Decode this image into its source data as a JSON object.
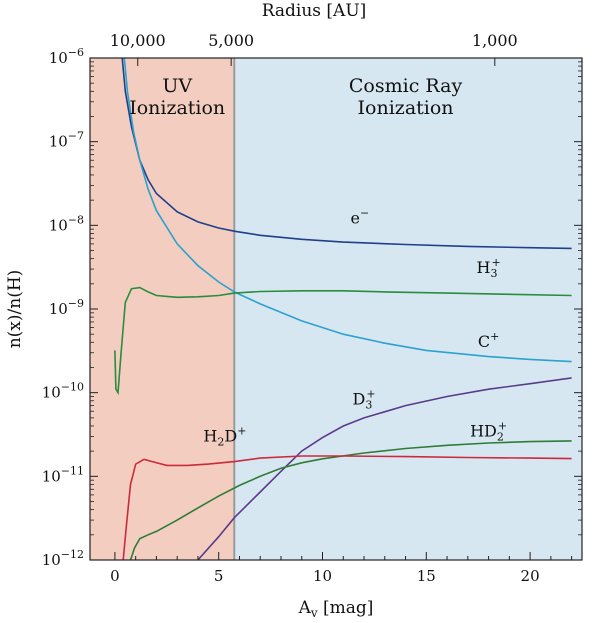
{
  "chart_data": {
    "type": "line",
    "xlabel": "A",
    "xlabel_sub": "v",
    "xlabel_unit": " [mag]",
    "ylabel": "n(x)/n(H)",
    "top_axis_label": "Radius [AU]",
    "xlim": [
      -1.2,
      22.5
    ],
    "ylim": [
      1e-12,
      1e-06
    ],
    "y_scale": "log",
    "grid": false,
    "x_ticks": [
      0,
      5,
      10,
      15,
      20
    ],
    "x_tick_labels": [
      "0",
      "5",
      "10",
      "15",
      "20"
    ],
    "y_ticks": [
      1e-12,
      1e-11,
      1e-10,
      1e-09,
      1e-08,
      1e-07,
      1e-06
    ],
    "y_tick_labels": [
      {
        "base": "10",
        "exp": "−12"
      },
      {
        "base": "10",
        "exp": "−11"
      },
      {
        "base": "10",
        "exp": "−10"
      },
      {
        "base": "10",
        "exp": "−9"
      },
      {
        "base": "10",
        "exp": "−8"
      },
      {
        "base": "10",
        "exp": "−7"
      },
      {
        "base": "10",
        "exp": "−6"
      }
    ],
    "top_ticks": [
      {
        "label": "10,000",
        "av": 1.1
      },
      {
        "label": "5,000",
        "av": 5.6
      },
      {
        "label": "1,000",
        "av": 18.3
      }
    ],
    "regions": [
      {
        "title_lines": [
          "UV",
          "Ionization"
        ],
        "x_from": -1.2,
        "x_to": 5.75,
        "color": "#f3cdbf",
        "title_x": 3.0
      },
      {
        "title_lines": [
          "Cosmic Ray",
          "Ionization"
        ],
        "x_from": 5.75,
        "x_to": 22.5,
        "color": "#d7e7f1",
        "title_x": 14.0
      }
    ],
    "region_boundary": 5.75,
    "series": [
      {
        "name": "e",
        "name_sup": "−",
        "color": "#1f3f8c",
        "label_at": [
          11.8,
          1.05e-08
        ],
        "points": [
          [
            0.35,
            1e-06
          ],
          [
            0.5,
            4e-07
          ],
          [
            0.8,
            1.5e-07
          ],
          [
            1.2,
            6e-08
          ],
          [
            1.6,
            3.5e-08
          ],
          [
            2.0,
            2.4e-08
          ],
          [
            3.0,
            1.45e-08
          ],
          [
            4.0,
            1.1e-08
          ],
          [
            5.0,
            9.3e-09
          ],
          [
            5.75,
            8.5e-09
          ],
          [
            7,
            7.6e-09
          ],
          [
            9,
            6.8e-09
          ],
          [
            11,
            6.3e-09
          ],
          [
            14,
            5.9e-09
          ],
          [
            17,
            5.6e-09
          ],
          [
            20,
            5.4e-09
          ],
          [
            22,
            5.3e-09
          ]
        ]
      },
      {
        "name": "C",
        "name_sup": "+",
        "color": "#2aa2cf",
        "label_at": [
          18.0,
          3.5e-10
        ],
        "points": [
          [
            0.45,
            1e-06
          ],
          [
            0.6,
            4e-07
          ],
          [
            0.9,
            1.3e-07
          ],
          [
            1.2,
            6e-08
          ],
          [
            1.6,
            2.7e-08
          ],
          [
            2.0,
            1.5e-08
          ],
          [
            3.0,
            6e-09
          ],
          [
            4.0,
            3.3e-09
          ],
          [
            5.0,
            2.1e-09
          ],
          [
            5.75,
            1.6e-09
          ],
          [
            7,
            1.15e-09
          ],
          [
            9,
            7.2e-10
          ],
          [
            11,
            5e-10
          ],
          [
            13,
            3.9e-10
          ],
          [
            15,
            3.2e-10
          ],
          [
            18,
            2.7e-10
          ],
          [
            20,
            2.5e-10
          ],
          [
            22,
            2.35e-10
          ]
        ]
      },
      {
        "name": "H",
        "name_sub": "3",
        "name_sup": "+",
        "color": "#2a8c3f",
        "label_at": [
          18.0,
          2.7e-09
        ],
        "points": [
          [
            0.0,
            3.2e-10
          ],
          [
            0.05,
            1.1e-10
          ],
          [
            0.15,
            1e-10
          ],
          [
            0.3,
            3e-10
          ],
          [
            0.5,
            1.2e-09
          ],
          [
            0.8,
            1.75e-09
          ],
          [
            1.2,
            1.8e-09
          ],
          [
            1.6,
            1.6e-09
          ],
          [
            2.0,
            1.45e-09
          ],
          [
            3.0,
            1.38e-09
          ],
          [
            4.0,
            1.4e-09
          ],
          [
            5.0,
            1.45e-09
          ],
          [
            5.75,
            1.55e-09
          ],
          [
            7,
            1.62e-09
          ],
          [
            9,
            1.65e-09
          ],
          [
            11,
            1.65e-09
          ],
          [
            13,
            1.6e-09
          ],
          [
            16,
            1.55e-09
          ],
          [
            19,
            1.5e-09
          ],
          [
            22,
            1.45e-09
          ]
        ]
      },
      {
        "name": "D",
        "name_sub": "3",
        "name_sup": "+",
        "color": "#5a3a8c",
        "label_at": [
          12.0,
          7.2e-11
        ],
        "points": [
          [
            4.0,
            1e-12
          ],
          [
            5.0,
            1.9e-12
          ],
          [
            5.75,
            3.2e-12
          ],
          [
            7,
            6.5e-12
          ],
          [
            8,
            1.15e-11
          ],
          [
            9,
            2e-11
          ],
          [
            10,
            2.9e-11
          ],
          [
            11,
            4e-11
          ],
          [
            12,
            5e-11
          ],
          [
            14,
            7e-11
          ],
          [
            16,
            9e-11
          ],
          [
            18,
            1.1e-10
          ],
          [
            20,
            1.28e-10
          ],
          [
            22,
            1.5e-10
          ]
        ]
      },
      {
        "name": "HD",
        "name_sub": "2",
        "name_sup": "+",
        "color": "#2e7d37",
        "label_at": [
          18.0,
          3e-11
        ],
        "points": [
          [
            0.75,
            1e-12
          ],
          [
            0.95,
            1.4e-12
          ],
          [
            1.2,
            1.8e-12
          ],
          [
            1.6,
            2e-12
          ],
          [
            2.0,
            2.2e-12
          ],
          [
            3.0,
            3e-12
          ],
          [
            4.0,
            4.2e-12
          ],
          [
            5.0,
            5.8e-12
          ],
          [
            6.0,
            7.8e-12
          ],
          [
            7.0,
            1e-11
          ],
          [
            8.0,
            1.25e-11
          ],
          [
            9.0,
            1.45e-11
          ],
          [
            10,
            1.62e-11
          ],
          [
            12,
            1.9e-11
          ],
          [
            14,
            2.15e-11
          ],
          [
            16,
            2.35e-11
          ],
          [
            18,
            2.5e-11
          ],
          [
            20,
            2.6e-11
          ],
          [
            22,
            2.65e-11
          ]
        ]
      },
      {
        "name": "H",
        "name_sub": "2",
        "name_tail": "D",
        "name_sup": "+",
        "color": "#cc2a3c",
        "label_at": [
          5.3,
          2.6e-11
        ],
        "points": [
          [
            0.4,
            1e-12
          ],
          [
            0.55,
            2.5e-12
          ],
          [
            0.75,
            8e-12
          ],
          [
            1.0,
            1.4e-11
          ],
          [
            1.4,
            1.6e-11
          ],
          [
            1.8,
            1.5e-11
          ],
          [
            2.5,
            1.35e-11
          ],
          [
            3.5,
            1.35e-11
          ],
          [
            4.5,
            1.4e-11
          ],
          [
            5.75,
            1.5e-11
          ],
          [
            7,
            1.65e-11
          ],
          [
            9,
            1.75e-11
          ],
          [
            11,
            1.75e-11
          ],
          [
            14,
            1.72e-11
          ],
          [
            17,
            1.68e-11
          ],
          [
            20,
            1.65e-11
          ],
          [
            22,
            1.63e-11
          ]
        ]
      }
    ]
  }
}
